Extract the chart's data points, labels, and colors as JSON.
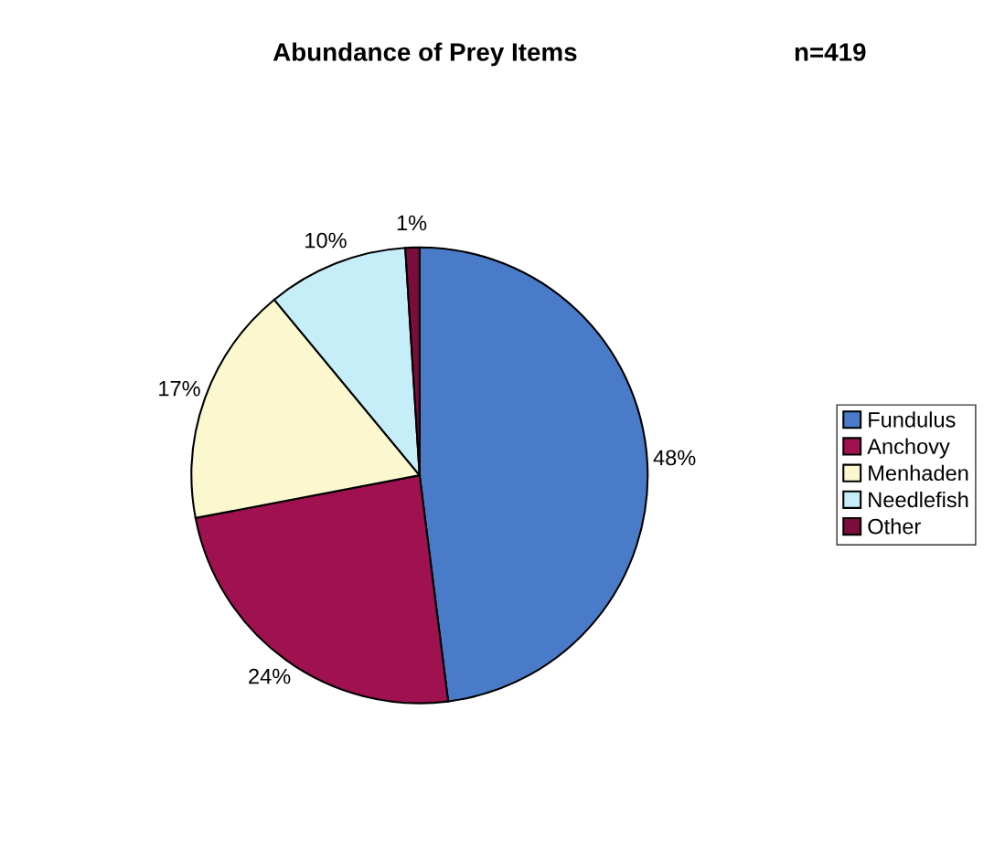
{
  "chart_data": {
    "type": "pie",
    "title": "Abundance of Prey Items",
    "annotations": [
      "n=419"
    ],
    "categories": [
      "Fundulus",
      "Anchovy",
      "Menhaden",
      "Needlefish",
      "Other"
    ],
    "values": [
      48,
      24,
      17,
      10,
      1
    ],
    "value_labels": [
      "48%",
      "24%",
      "17%",
      "10%",
      "1%"
    ],
    "colors": [
      "#4a7bc8",
      "#a0124f",
      "#fbf8cf",
      "#c6eef9",
      "#7a0d3c"
    ],
    "legend": "right"
  }
}
